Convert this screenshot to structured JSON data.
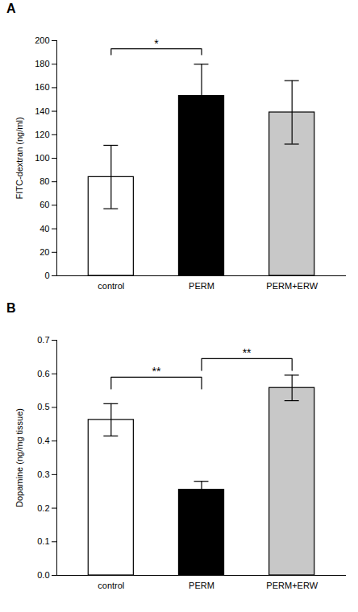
{
  "chart_data": [
    {
      "type": "bar",
      "title": "A",
      "categories": [
        "control",
        "PERM",
        "PERM+ERW"
      ],
      "values": [
        84,
        153,
        139
      ],
      "errors": [
        27,
        27,
        27
      ],
      "colors": [
        "#ffffff",
        "#000000",
        "#c8c8c8"
      ],
      "ylabel": "FITC-dextran (ng/ml)",
      "ylim": [
        0,
        200
      ],
      "yticks": [
        0,
        20,
        40,
        60,
        80,
        100,
        120,
        140,
        160,
        180,
        200
      ],
      "annotations": [
        {
          "label": "*",
          "x1": "control",
          "x2": "PERM",
          "y": 193,
          "drop1": 5,
          "drop2": 5
        }
      ]
    },
    {
      "type": "bar",
      "title": "B",
      "categories": [
        "control",
        "PERM",
        "PERM+ERW"
      ],
      "values": [
        0.463,
        0.255,
        0.558
      ],
      "errors": [
        0.048,
        0.025,
        0.038
      ],
      "colors": [
        "#ffffff",
        "#000000",
        "#c8c8c8"
      ],
      "ylabel": "Dopamine (ng/mg tissue)",
      "ylim": [
        0,
        0.7
      ],
      "yticks": [
        {
          "value": 0,
          "label": "0.0"
        },
        0.1,
        0.2,
        0.3,
        0.4,
        0.5,
        0.6,
        0.7
      ],
      "annotations": [
        {
          "label": "**",
          "x1": "control",
          "x2": "PERM",
          "y": 0.59,
          "drop1": 0.035,
          "drop2": 0.035
        },
        {
          "label": "**",
          "x1": "PERM",
          "x2": "PERM+ERW",
          "y": 0.645,
          "drop1": 0.035,
          "drop2": 0.035
        }
      ]
    }
  ]
}
